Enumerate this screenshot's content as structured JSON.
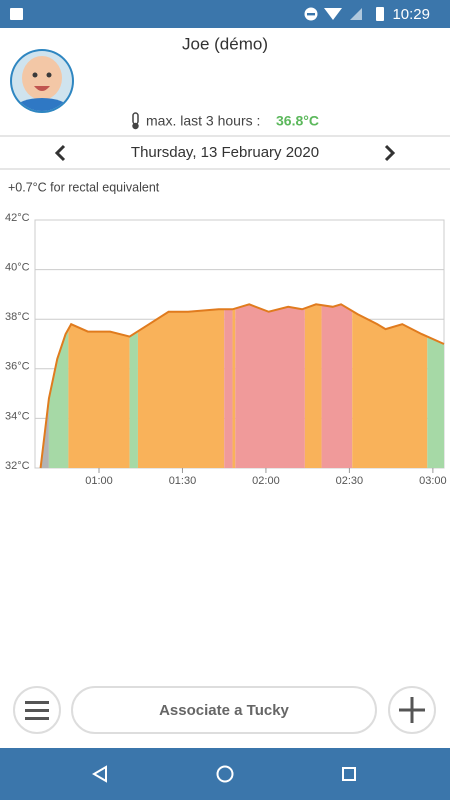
{
  "status_bar": {
    "time": "10:29"
  },
  "header": {
    "name": "Joe (démo)",
    "max_label": "max. last 3 hours :",
    "max_value": "36.8°C"
  },
  "date_nav": {
    "date": "Thursday, 13 February 2020"
  },
  "note": "+0.7°C for rectal equivalent",
  "chart_data": {
    "type": "area",
    "x": [
      "00:39",
      "00:42",
      "00:45",
      "00:48",
      "00:50",
      "00:56",
      "01:04",
      "01:11",
      "01:18",
      "01:25",
      "01:32",
      "01:43",
      "01:48",
      "01:54",
      "02:01",
      "02:08",
      "02:13",
      "02:18",
      "02:24",
      "02:27",
      "02:33",
      "02:40",
      "02:43",
      "02:49",
      "02:56",
      "03:04"
    ],
    "series": [
      {
        "color": "#e07b1e",
        "values": [
          32,
          34.8,
          36.4,
          37.4,
          37.8,
          37.5,
          37.5,
          37.3,
          37.8,
          38.3,
          38.3,
          38.4,
          38.4,
          38.6,
          38.3,
          38.5,
          38.4,
          38.6,
          38.5,
          38.6,
          38.2,
          37.8,
          37.6,
          37.8,
          37.4,
          37
        ]
      }
    ],
    "bands": [
      {
        "start": "00:39",
        "end": "00:42",
        "color": "#b3b3b3"
      },
      {
        "start": "00:42",
        "end": "00:49",
        "color": "#a6d9a6"
      },
      {
        "start": "00:49",
        "end": "01:11",
        "color": "#f9b25a"
      },
      {
        "start": "01:11",
        "end": "01:14",
        "color": "#a6d9a6"
      },
      {
        "start": "01:14",
        "end": "01:45",
        "color": "#f9b25a"
      },
      {
        "start": "01:45",
        "end": "01:48",
        "color": "#f09a9a"
      },
      {
        "start": "01:48",
        "end": "01:49",
        "color": "#f9b25a"
      },
      {
        "start": "01:49",
        "end": "02:14",
        "color": "#f09a9a"
      },
      {
        "start": "02:14",
        "end": "02:20",
        "color": "#f9b25a"
      },
      {
        "start": "02:20",
        "end": "02:31",
        "color": "#f09a9a"
      },
      {
        "start": "02:31",
        "end": "02:58",
        "color": "#f9b25a"
      },
      {
        "start": "02:58",
        "end": "03:04",
        "color": "#a6d9a6"
      }
    ],
    "xlim": [
      "00:37",
      "03:04"
    ],
    "xticks": [
      "01:00",
      "01:30",
      "02:00",
      "02:30",
      "03:00"
    ],
    "ylim": [
      32,
      42
    ],
    "yticks": [
      {
        "value": 32,
        "label": "32°C"
      },
      {
        "value": 34,
        "label": "34°C"
      },
      {
        "value": 36,
        "label": "36°C"
      },
      {
        "value": 38,
        "label": "38°C"
      },
      {
        "value": 40,
        "label": "40°C"
      },
      {
        "value": 42,
        "label": "42°C"
      }
    ],
    "grid": true
  },
  "bottom_bar": {
    "button": "Associate a Tucky"
  }
}
